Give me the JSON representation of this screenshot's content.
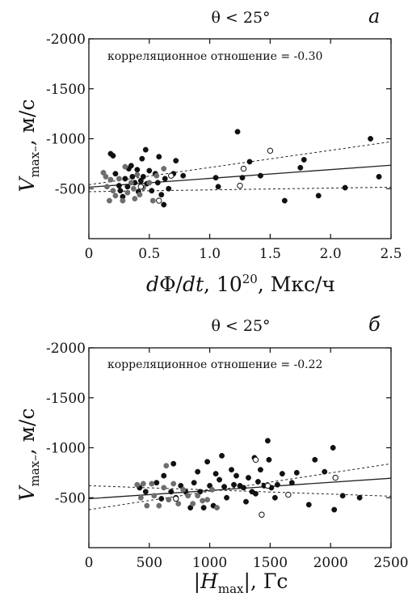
{
  "chart_data": [
    {
      "type": "scatter",
      "panel_letter": "a",
      "title": "θ < 25°",
      "annotation": "корреляционное отношение = -0.30",
      "ylabel": {
        "symbol": "V",
        "subscript": "max–",
        "unit": ", м/с"
      },
      "xlabel": {
        "part1": "d",
        "part2": "Φ/",
        "part3": "dt",
        "part4": ", 10",
        "sup": "20",
        "part5": ", Мкс/ч"
      },
      "xlim": [
        0,
        2.5
      ],
      "ylim": [
        0,
        -2000
      ],
      "xticks": [
        "0",
        "0.5",
        "1.0",
        "1.5",
        "2.0",
        "2.5"
      ],
      "yticks": [
        "-2000",
        "-1500",
        "-1000",
        "-500"
      ],
      "fit_line": [
        [
          0,
          -515
        ],
        [
          2.5,
          -735
        ]
      ],
      "conf_upper": [
        [
          0,
          -540
        ],
        [
          2.5,
          -970
        ]
      ],
      "conf_lower": [
        [
          0,
          -470
        ],
        [
          2.5,
          -515
        ]
      ],
      "series": [
        {
          "style": "filled-black",
          "points": [
            [
              0.18,
              -850
            ],
            [
              0.2,
              -830
            ],
            [
              0.22,
              -650
            ],
            [
              0.25,
              -530
            ],
            [
              0.26,
              -480
            ],
            [
              0.28,
              -420
            ],
            [
              0.3,
              -600
            ],
            [
              0.32,
              -520
            ],
            [
              0.33,
              -700
            ],
            [
              0.35,
              -730
            ],
            [
              0.36,
              -620
            ],
            [
              0.38,
              -560
            ],
            [
              0.4,
              -690
            ],
            [
              0.41,
              -470
            ],
            [
              0.43,
              -580
            ],
            [
              0.44,
              -800
            ],
            [
              0.45,
              -620
            ],
            [
              0.47,
              -890
            ],
            [
              0.48,
              -550
            ],
            [
              0.5,
              -680
            ],
            [
              0.52,
              -480
            ],
            [
              0.55,
              -650
            ],
            [
              0.57,
              -560
            ],
            [
              0.58,
              -820
            ],
            [
              0.6,
              -440
            ],
            [
              0.62,
              -340
            ],
            [
              0.63,
              -600
            ],
            [
              0.66,
              -500
            ],
            [
              0.7,
              -650
            ],
            [
              0.72,
              -780
            ],
            [
              0.78,
              -630
            ],
            [
              1.05,
              -610
            ],
            [
              1.07,
              -520
            ],
            [
              1.23,
              -1070
            ],
            [
              1.27,
              -610
            ],
            [
              1.33,
              -770
            ],
            [
              1.42,
              -630
            ],
            [
              1.62,
              -380
            ],
            [
              1.75,
              -710
            ],
            [
              1.78,
              -790
            ],
            [
              1.9,
              -430
            ],
            [
              2.12,
              -510
            ],
            [
              2.33,
              -1000
            ],
            [
              2.4,
              -620
            ]
          ]
        },
        {
          "style": "filled-gray",
          "points": [
            [
              0.12,
              -660
            ],
            [
              0.14,
              -620
            ],
            [
              0.15,
              -520
            ],
            [
              0.17,
              -380
            ],
            [
              0.18,
              -590
            ],
            [
              0.2,
              -480
            ],
            [
              0.22,
              -430
            ],
            [
              0.25,
              -600
            ],
            [
              0.28,
              -380
            ],
            [
              0.3,
              -720
            ],
            [
              0.32,
              -460
            ],
            [
              0.35,
              -560
            ],
            [
              0.37,
              -500
            ],
            [
              0.38,
              -400
            ],
            [
              0.4,
              -640
            ],
            [
              0.42,
              -440
            ],
            [
              0.45,
              -510
            ],
            [
              0.5,
              -560
            ],
            [
              0.53,
              -380
            ],
            [
              0.56,
              -630
            ],
            [
              0.62,
              -700
            ]
          ]
        },
        {
          "style": "open",
          "points": [
            [
              0.43,
              -520
            ],
            [
              0.58,
              -380
            ],
            [
              0.68,
              -630
            ],
            [
              1.25,
              -530
            ],
            [
              1.28,
              -700
            ],
            [
              1.5,
              -880
            ]
          ]
        }
      ]
    },
    {
      "type": "scatter",
      "panel_letter": "б",
      "title": "θ < 25°",
      "annotation": "корреляционное отношение = -0.22",
      "ylabel": {
        "symbol": "V",
        "subscript": "max–",
        "unit": ", м/с"
      },
      "xlabel": {
        "part1": "|",
        "part2": "H",
        "sub": "max",
        "part3": "|, Гс"
      },
      "xlim": [
        0,
        2500
      ],
      "ylim": [
        0,
        -2000
      ],
      "xticks": [
        "0",
        "500",
        "1000",
        "1500",
        "2000",
        "2500"
      ],
      "yticks": [
        "-2000",
        "-1500",
        "-1000",
        "-500"
      ],
      "fit_line": [
        [
          0,
          -490
        ],
        [
          2500,
          -695
        ]
      ],
      "conf_upper": [
        [
          0,
          -380
        ],
        [
          2500,
          -840
        ]
      ],
      "conf_lower": [
        [
          0,
          -620
        ],
        [
          2500,
          -515
        ]
      ],
      "series": [
        {
          "style": "filled-black",
          "points": [
            [
              420,
              -600
            ],
            [
              470,
              -560
            ],
            [
              560,
              -650
            ],
            [
              600,
              -490
            ],
            [
              620,
              -720
            ],
            [
              680,
              -560
            ],
            [
              700,
              -840
            ],
            [
              720,
              -500
            ],
            [
              760,
              -620
            ],
            [
              800,
              -560
            ],
            [
              840,
              -400
            ],
            [
              870,
              -650
            ],
            [
              900,
              -760
            ],
            [
              920,
              -560
            ],
            [
              950,
              -400
            ],
            [
              980,
              -860
            ],
            [
              1000,
              -620
            ],
            [
              1030,
              -420
            ],
            [
              1050,
              -740
            ],
            [
              1080,
              -680
            ],
            [
              1100,
              -920
            ],
            [
              1120,
              -610
            ],
            [
              1140,
              -500
            ],
            [
              1180,
              -780
            ],
            [
              1200,
              -630
            ],
            [
              1220,
              -720
            ],
            [
              1250,
              -620
            ],
            [
              1280,
              -600
            ],
            [
              1300,
              -460
            ],
            [
              1320,
              -700
            ],
            [
              1350,
              -560
            ],
            [
              1370,
              -900
            ],
            [
              1380,
              -540
            ],
            [
              1400,
              -660
            ],
            [
              1420,
              -780
            ],
            [
              1450,
              -620
            ],
            [
              1480,
              -1070
            ],
            [
              1490,
              -880
            ],
            [
              1510,
              -600
            ],
            [
              1540,
              -500
            ],
            [
              1560,
              -630
            ],
            [
              1600,
              -740
            ],
            [
              1680,
              -650
            ],
            [
              1720,
              -750
            ],
            [
              1820,
              -430
            ],
            [
              1870,
              -880
            ],
            [
              1950,
              -760
            ],
            [
              2020,
              -1000
            ],
            [
              2030,
              -380
            ],
            [
              2100,
              -520
            ],
            [
              2240,
              -500
            ]
          ]
        },
        {
          "style": "filled-gray",
          "points": [
            [
              400,
              -630
            ],
            [
              430,
              -500
            ],
            [
              450,
              -640
            ],
            [
              480,
              -420
            ],
            [
              520,
              -640
            ],
            [
              540,
              -520
            ],
            [
              580,
              -420
            ],
            [
              620,
              -600
            ],
            [
              640,
              -820
            ],
            [
              660,
              -480
            ],
            [
              700,
              -640
            ],
            [
              740,
              -440
            ],
            [
              780,
              -580
            ],
            [
              820,
              -520
            ],
            [
              860,
              -440
            ],
            [
              900,
              -520
            ],
            [
              940,
              -470
            ],
            [
              980,
              -480
            ],
            [
              1020,
              -580
            ],
            [
              1060,
              -400
            ]
          ]
        },
        {
          "style": "open",
          "points": [
            [
              720,
              -490
            ],
            [
              1380,
              -880
            ],
            [
              1430,
              -330
            ],
            [
              1480,
              -620
            ],
            [
              1650,
              -530
            ],
            [
              2040,
              -700
            ]
          ]
        }
      ]
    }
  ]
}
